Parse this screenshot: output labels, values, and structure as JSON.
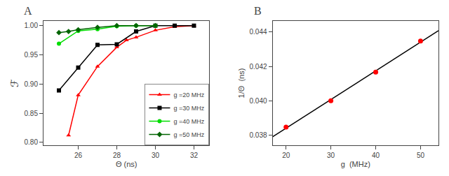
{
  "chart_data": [
    {
      "type": "line",
      "title": "A",
      "x_label": "Θ (ns)",
      "y_label": "ℱ",
      "xlim": [
        24.2,
        32.8
      ],
      "ylim": [
        0.795,
        1.008
      ],
      "xticks": [
        26,
        28,
        30,
        32
      ],
      "yticks": [
        {
          "value": 0.8,
          "label": "0.80"
        },
        {
          "value": 0.85,
          "label": "0.85"
        },
        {
          "value": 0.9,
          "label": "0.90"
        },
        {
          "value": 0.95,
          "label": "0.95"
        },
        {
          "value": 1.0,
          "label": "1.00"
        }
      ],
      "grid": false,
      "legend": "lower right",
      "series": [
        {
          "name": "g =20 MHz",
          "color": "#ff0000",
          "marker": "triangle-up",
          "x": [
            25.5,
            26.0,
            27.0,
            28.0,
            28.5,
            29.0,
            30.0,
            31.0,
            32.0
          ],
          "values": [
            0.812,
            0.881,
            0.93,
            0.963,
            0.975,
            0.98,
            0.992,
            0.998,
            1.0
          ]
        },
        {
          "name": "g =30 MHz",
          "color": "#000000",
          "marker": "square",
          "x": [
            25.0,
            26.0,
            27.0,
            28.0,
            29.0,
            30.0,
            31.0,
            32.0
          ],
          "values": [
            0.889,
            0.928,
            0.967,
            0.968,
            0.99,
            1.0,
            1.0,
            1.0
          ]
        },
        {
          "name": "g =40 MHz",
          "color": "#00dd00",
          "marker": "circle",
          "x": [
            25.0,
            26.0,
            27.0,
            28.0,
            29.0,
            30.0
          ],
          "values": [
            0.969,
            0.991,
            0.994,
            0.999,
            1.0,
            1.0
          ]
        },
        {
          "name": "g =50 MHz",
          "color": "#006400",
          "marker": "diamond",
          "x": [
            25.0,
            25.5,
            26.0,
            27.0,
            28.0,
            29.0,
            30.0
          ],
          "values": [
            0.988,
            0.99,
            0.993,
            0.997,
            1.0,
            1.0,
            1.0
          ]
        }
      ]
    },
    {
      "type": "scatter",
      "title": "B",
      "x_label": "g  (MHz)",
      "y_label": "1/Θ  (ns)",
      "xlim": [
        17,
        54
      ],
      "ylim": [
        0.0374,
        0.04465
      ],
      "xticks": [
        20,
        30,
        40,
        50
      ],
      "yticks": [
        {
          "value": 0.038,
          "label": "0.038"
        },
        {
          "value": 0.04,
          "label": "0.040"
        },
        {
          "value": 0.042,
          "label": "0.042"
        },
        {
          "value": 0.044,
          "label": "0.044"
        }
      ],
      "grid": false,
      "series": [
        {
          "type": "line",
          "color": "#000000",
          "x": [
            17,
            54
          ],
          "values": [
            0.0378911,
            0.0440812
          ]
        },
        {
          "type": "scatter",
          "color": "#ff0000",
          "marker": "circle",
          "x": [
            20,
            30,
            40,
            50
          ],
          "values": [
            0.03846,
            0.04,
            0.04167,
            0.04348
          ]
        }
      ]
    }
  ]
}
